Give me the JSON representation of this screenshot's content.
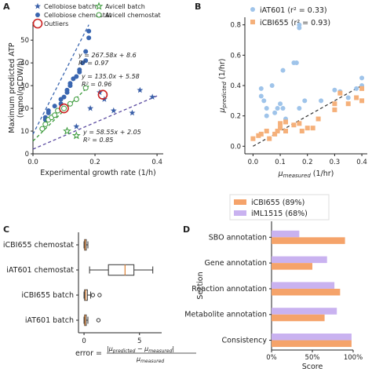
{
  "chart_data": [
    {
      "panel": "A",
      "type": "scatter",
      "xlabel": "Experimental growth rate (1/h)",
      "ylabel": "Maximum predicted ATP\n(mmol/gCDW/h)",
      "xlim": [
        0,
        0.42
      ],
      "ylim": [
        0,
        58
      ],
      "xticks": [
        "0.0",
        "0.2",
        "0.4"
      ],
      "yticks": [
        "0",
        "10",
        "20",
        "30",
        "40",
        "50"
      ],
      "legend_position": "top-left",
      "series": [
        {
          "name": "Cellobiose batch",
          "marker": "star",
          "color": "#3a5fa8",
          "points": [
            [
              0.14,
              12
            ],
            [
              0.185,
              20
            ],
            [
              0.215,
              27
            ],
            [
              0.23,
              24
            ],
            [
              0.26,
              19
            ],
            [
              0.32,
              18
            ],
            [
              0.345,
              28
            ],
            [
              0.385,
              25
            ]
          ]
        },
        {
          "name": "Cellobiose chemostat",
          "marker": "circle",
          "color": "#3a66b0",
          "points": [
            [
              0.04,
              15
            ],
            [
              0.04,
              16
            ],
            [
              0.05,
              18
            ],
            [
              0.05,
              19
            ],
            [
              0.07,
              21
            ],
            [
              0.09,
              22
            ],
            [
              0.09,
              24
            ],
            [
              0.1,
              25
            ],
            [
              0.11,
              27
            ],
            [
              0.11,
              28
            ],
            [
              0.12,
              30
            ],
            [
              0.12,
              31
            ],
            [
              0.13,
              33
            ],
            [
              0.14,
              34
            ],
            [
              0.15,
              36
            ],
            [
              0.15,
              37
            ],
            [
              0.16,
              40
            ],
            [
              0.17,
              41
            ],
            [
              0.17,
              45
            ],
            [
              0.18,
              51
            ],
            [
              0.18,
              54
            ]
          ]
        },
        {
          "name": "Avicell batch",
          "marker": "star-open",
          "color": "#3a9a3a",
          "points": [
            [
              0.11,
              10
            ],
            [
              0.14,
              8
            ]
          ]
        },
        {
          "name": "Avicell chemostat",
          "marker": "circle-open",
          "color": "#3a9a3a",
          "points": [
            [
              0.03,
              11
            ],
            [
              0.04,
              13
            ],
            [
              0.05,
              15
            ],
            [
              0.06,
              16
            ],
            [
              0.07,
              17
            ],
            [
              0.08,
              19
            ],
            [
              0.1,
              20
            ],
            [
              0.12,
              22
            ],
            [
              0.14,
              24
            ],
            [
              0.17,
              29
            ]
          ]
        },
        {
          "name": "Outliers",
          "marker": "ring",
          "color": "#cc2222",
          "points": [
            [
              0.1,
              20
            ],
            [
              0.225,
              26
            ]
          ]
        }
      ],
      "fits": [
        {
          "color": "#3a66b0",
          "slope": 267.58,
          "intercept": 8.6,
          "x_range": [
            0.0,
            0.18
          ],
          "eq": "y = 267.58x + 8.6",
          "r2": "R² = 0.97"
        },
        {
          "color": "#3a9a3a",
          "slope": 135.0,
          "intercept": 5.58,
          "x_range": [
            0.0,
            0.18
          ],
          "eq": "y = 135.0x + 5.58",
          "r2": "R² = 0.96"
        },
        {
          "color": "#5a4aa0",
          "slope": 58.55,
          "intercept": 2.05,
          "x_range": [
            0.0,
            0.4
          ],
          "eq": "y = 58.55x + 2.05",
          "r2": "R² = 0.85"
        }
      ]
    },
    {
      "panel": "B",
      "type": "scatter",
      "xlabel": "μ",
      "xlabel_sub": "measured",
      "xlabel_unit": " (1/hr)",
      "ylabel": "μ",
      "ylabel_sub": "predicted",
      "ylabel_unit": " (1/hr)",
      "xlim": [
        -0.03,
        0.42
      ],
      "ylim": [
        -0.05,
        0.85
      ],
      "xticks": [
        "0.0",
        "0.1",
        "0.2",
        "0.3",
        "0.4"
      ],
      "yticks": [
        "0.0",
        "0.2",
        "0.4",
        "0.6",
        "0.8"
      ],
      "legend_position": "top-left",
      "series": [
        {
          "name": "iAT601",
          "stat": "(r² = 0.33)",
          "marker": "circle",
          "color": "#9fc4ea",
          "points": [
            [
              0.03,
              0.33
            ],
            [
              0.03,
              0.38
            ],
            [
              0.04,
              0.3
            ],
            [
              0.05,
              0.2
            ],
            [
              0.05,
              0.25
            ],
            [
              0.07,
              0.4
            ],
            [
              0.08,
              0.22
            ],
            [
              0.09,
              0.25
            ],
            [
              0.1,
              0.28
            ],
            [
              0.11,
              0.25
            ],
            [
              0.11,
              0.5
            ],
            [
              0.12,
              0.18
            ],
            [
              0.15,
              0.55
            ],
            [
              0.16,
              0.55
            ],
            [
              0.17,
              0.78
            ],
            [
              0.17,
              0.8
            ],
            [
              0.17,
              0.25
            ],
            [
              0.19,
              0.3
            ],
            [
              0.25,
              0.3
            ],
            [
              0.3,
              0.37
            ],
            [
              0.32,
              0.36
            ],
            [
              0.35,
              0.32
            ],
            [
              0.38,
              0.38
            ],
            [
              0.4,
              0.4
            ],
            [
              0.4,
              0.45
            ]
          ]
        },
        {
          "name": "iCBI655",
          "stat": "(r² = 0.93)",
          "marker": "square",
          "color": "#f5b07a",
          "points": [
            [
              0.0,
              0.05
            ],
            [
              0.02,
              0.07
            ],
            [
              0.03,
              0.08
            ],
            [
              0.05,
              0.1
            ],
            [
              0.06,
              0.05
            ],
            [
              0.08,
              0.08
            ],
            [
              0.09,
              0.1
            ],
            [
              0.1,
              0.12
            ],
            [
              0.1,
              0.15
            ],
            [
              0.12,
              0.1
            ],
            [
              0.12,
              0.16
            ],
            [
              0.15,
              0.14
            ],
            [
              0.17,
              0.15
            ],
            [
              0.18,
              0.1
            ],
            [
              0.2,
              0.12
            ],
            [
              0.22,
              0.12
            ],
            [
              0.24,
              0.18
            ],
            [
              0.3,
              0.28
            ],
            [
              0.3,
              0.24
            ],
            [
              0.32,
              0.35
            ],
            [
              0.35,
              0.28
            ],
            [
              0.38,
              0.32
            ],
            [
              0.4,
              0.3
            ],
            [
              0.4,
              0.38
            ]
          ]
        }
      ],
      "fits": [
        {
          "color": "#333333",
          "slope": 1.0,
          "intercept": 0.0,
          "x_range": [
            0.0,
            0.4
          ],
          "dashed": true
        }
      ]
    },
    {
      "panel": "C",
      "type": "box",
      "xlabel": "error = ",
      "xlabel_num": "|μ",
      "xlabel_num_sub1": "predicted",
      "xlabel_num_mid": " − μ",
      "xlabel_num_sub2": "measured",
      "xlabel_num_end": "|",
      "xlabel_den": "μ",
      "xlabel_den_sub": "measured",
      "xlim": [
        -0.5,
        7
      ],
      "xticks": [
        "0",
        "5"
      ],
      "categories": [
        "iCBI655 chemostat",
        "iAT601 chemostat",
        "iCBI655 batch",
        "iAT601 batch"
      ],
      "boxes": [
        {
          "min": 0.0,
          "q1": 0.05,
          "median": 0.1,
          "q3": 0.2,
          "max": 0.35,
          "outliers": []
        },
        {
          "min": 0.5,
          "q1": 2.2,
          "median": 3.7,
          "q3": 4.5,
          "max": 6.2,
          "outliers": []
        },
        {
          "min": 0.0,
          "q1": 0.05,
          "median": 0.15,
          "q3": 0.3,
          "max": 0.6,
          "outliers": [
            0.8,
            1.4
          ]
        },
        {
          "min": 0.0,
          "q1": 0.05,
          "median": 0.1,
          "q3": 0.2,
          "max": 0.35,
          "outliers": [
            1.3
          ]
        }
      ]
    },
    {
      "panel": "D",
      "type": "bar",
      "orientation": "horizontal",
      "xlabel": "Score",
      "ylabel": "Section",
      "xlim": [
        0,
        100
      ],
      "xticks": [
        "0%",
        "50%",
        "100%"
      ],
      "legend_position": "top-left",
      "categories": [
        "SBO annotation",
        "Gene annotation",
        "Reaction annotation",
        "Metabolite annotation",
        "Consistency"
      ],
      "series": [
        {
          "name": "iCBI655 (89%)",
          "color": "#f5a36a",
          "values": [
            90,
            50,
            84,
            65,
            98
          ]
        },
        {
          "name": "iML1515 (68%)",
          "color": "#c9b2f0",
          "values": [
            34,
            68,
            77,
            80,
            98
          ]
        }
      ]
    }
  ]
}
